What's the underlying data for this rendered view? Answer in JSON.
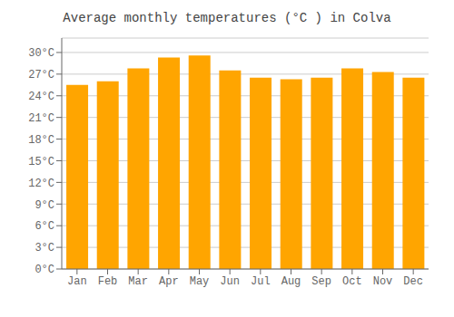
{
  "chart_data": {
    "type": "bar",
    "title": "Average monthly temperatures (°C ) in Colva",
    "categories": [
      "Jan",
      "Feb",
      "Mar",
      "Apr",
      "May",
      "Jun",
      "Jul",
      "Aug",
      "Sep",
      "Oct",
      "Nov",
      "Dec"
    ],
    "values": [
      25.5,
      26.0,
      27.8,
      29.3,
      29.6,
      27.5,
      26.5,
      26.3,
      26.5,
      27.8,
      27.3,
      26.5
    ],
    "color": "#FFA500",
    "ylim": [
      0,
      32
    ],
    "yticks": [
      {
        "value": 0,
        "label": "0°C"
      },
      {
        "value": 3,
        "label": "3°C"
      },
      {
        "value": 6,
        "label": "6°C"
      },
      {
        "value": 9,
        "label": "9°C"
      },
      {
        "value": 12,
        "label": "12°C"
      },
      {
        "value": 15,
        "label": "15°C"
      },
      {
        "value": 18,
        "label": "18°C"
      },
      {
        "value": 21,
        "label": "21°C"
      },
      {
        "value": 24,
        "label": "24°C"
      },
      {
        "value": 27,
        "label": "27°C"
      },
      {
        "value": 30,
        "label": "30°C"
      }
    ],
    "grid": true
  }
}
